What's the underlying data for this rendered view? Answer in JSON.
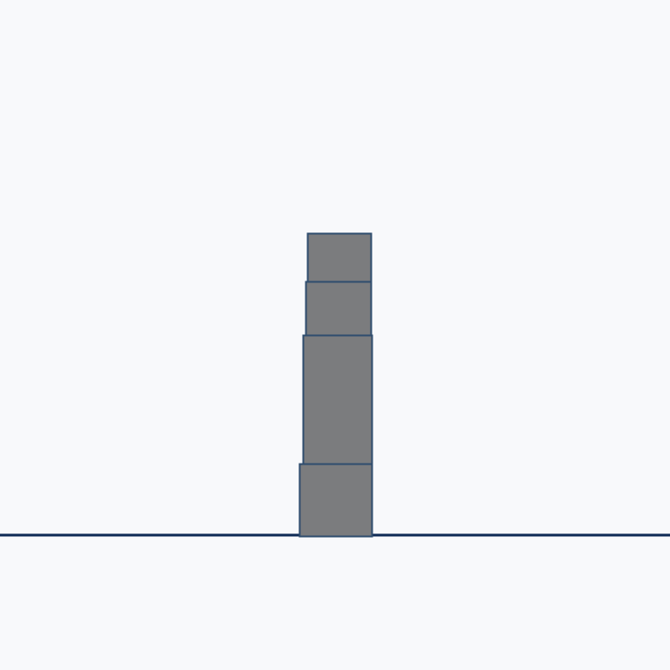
{
  "scene": {
    "background_color": "#f8f9fb",
    "ground_color": "#0f2a55",
    "block_fill_color": "#7b7c7e",
    "block_stroke_color": "#2f4d6e",
    "stack_count": 4
  },
  "blocks": [
    {
      "name": "block-1-bottom",
      "label": ""
    },
    {
      "name": "block-2",
      "label": ""
    },
    {
      "name": "block-3",
      "label": ""
    },
    {
      "name": "block-4-top",
      "label": ""
    }
  ]
}
